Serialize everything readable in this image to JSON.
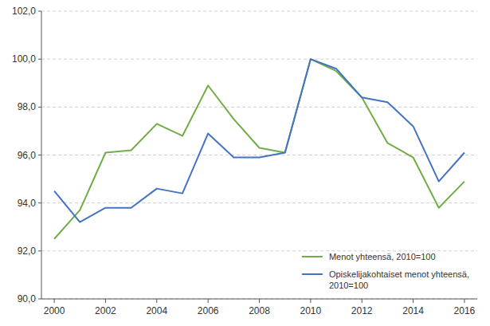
{
  "chart_data": {
    "type": "line",
    "x": [
      2000,
      2001,
      2002,
      2003,
      2004,
      2005,
      2006,
      2007,
      2008,
      2009,
      2010,
      2011,
      2012,
      2013,
      2014,
      2015,
      2016
    ],
    "series": [
      {
        "name": "Menot yhteensä, 2010=100",
        "color": "#70AD47",
        "values": [
          92.5,
          93.7,
          96.1,
          96.2,
          97.3,
          96.8,
          98.9,
          97.5,
          96.3,
          96.1,
          100.0,
          99.5,
          98.4,
          96.5,
          95.9,
          93.8,
          94.9
        ]
      },
      {
        "name": "Opiskelijakohtaiset menot yhteensä,\n2010=100",
        "color": "#4472C4",
        "values": [
          94.5,
          93.2,
          93.8,
          93.8,
          94.6,
          94.4,
          96.9,
          95.9,
          95.9,
          96.1,
          100.0,
          99.6,
          98.4,
          98.2,
          97.2,
          94.9,
          96.1
        ]
      }
    ],
    "xlim": [
      1999.5,
      2016.5
    ],
    "xticks": [
      2000,
      2002,
      2004,
      2006,
      2008,
      2010,
      2012,
      2014,
      2016
    ],
    "ylim": [
      90.0,
      102.0
    ],
    "yticks": [
      {
        "value": 90.0,
        "label": "90,0"
      },
      {
        "value": 92.0,
        "label": "92,0"
      },
      {
        "value": 94.0,
        "label": "94,0"
      },
      {
        "value": 96.0,
        "label": "96,0"
      },
      {
        "value": 98.0,
        "label": "98,0"
      },
      {
        "value": 100.0,
        "label": "100,0"
      },
      {
        "value": 102.0,
        "label": "102,0"
      }
    ],
    "grid": true,
    "legend": "lower right"
  }
}
